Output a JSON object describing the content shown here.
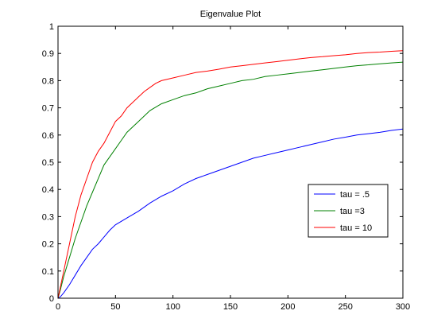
{
  "chart_data": {
    "type": "line",
    "title": "Eigenvalue Plot",
    "xlabel": "",
    "ylabel": "",
    "xlim": [
      0,
      300
    ],
    "ylim": [
      0,
      1
    ],
    "xticks": [
      "0",
      "50",
      "100",
      "150",
      "200",
      "250",
      "300"
    ],
    "yticks": [
      "0",
      "0.1",
      "0.2",
      "0.3",
      "0.4",
      "0.5",
      "0.6",
      "0.7",
      "0.8",
      "0.9",
      "1"
    ],
    "grid": false,
    "legend_position": "right",
    "series": [
      {
        "name": "tau = .5",
        "color": "#0000ff",
        "x": [
          0,
          2,
          5,
          10,
          15,
          20,
          25,
          30,
          35,
          40,
          45,
          50,
          60,
          70,
          80,
          90,
          100,
          110,
          120,
          130,
          140,
          150,
          160,
          170,
          180,
          190,
          200,
          210,
          220,
          230,
          240,
          250,
          260,
          270,
          280,
          290,
          300
        ],
        "y": [
          0,
          0.005,
          0.02,
          0.05,
          0.085,
          0.12,
          0.15,
          0.18,
          0.2,
          0.225,
          0.25,
          0.27,
          0.295,
          0.32,
          0.35,
          0.375,
          0.395,
          0.42,
          0.44,
          0.455,
          0.47,
          0.485,
          0.5,
          0.515,
          0.525,
          0.535,
          0.545,
          0.555,
          0.565,
          0.575,
          0.585,
          0.592,
          0.6,
          0.605,
          0.61,
          0.617,
          0.622
        ]
      },
      {
        "name": "tau =3",
        "color": "#008000",
        "x": [
          0,
          2,
          5,
          10,
          15,
          20,
          25,
          30,
          35,
          40,
          45,
          50,
          55,
          60,
          70,
          80,
          90,
          100,
          110,
          120,
          130,
          140,
          150,
          160,
          170,
          180,
          190,
          200,
          210,
          220,
          230,
          240,
          250,
          260,
          270,
          280,
          290,
          300
        ],
        "y": [
          0,
          0.03,
          0.08,
          0.15,
          0.22,
          0.28,
          0.34,
          0.39,
          0.44,
          0.49,
          0.52,
          0.55,
          0.58,
          0.61,
          0.65,
          0.69,
          0.715,
          0.73,
          0.745,
          0.755,
          0.77,
          0.78,
          0.79,
          0.8,
          0.805,
          0.815,
          0.82,
          0.825,
          0.83,
          0.835,
          0.84,
          0.845,
          0.85,
          0.855,
          0.858,
          0.862,
          0.865,
          0.868
        ]
      },
      {
        "name": "tau = 10",
        "color": "#ff0000",
        "x": [
          0,
          2,
          5,
          10,
          15,
          20,
          25,
          30,
          35,
          40,
          45,
          50,
          55,
          60,
          65,
          70,
          75,
          80,
          85,
          90,
          100,
          110,
          120,
          130,
          140,
          150,
          160,
          170,
          180,
          190,
          200,
          210,
          220,
          230,
          240,
          250,
          260,
          270,
          280,
          290,
          300
        ],
        "y": [
          0,
          0.04,
          0.1,
          0.2,
          0.3,
          0.38,
          0.44,
          0.5,
          0.54,
          0.57,
          0.61,
          0.65,
          0.67,
          0.7,
          0.72,
          0.74,
          0.76,
          0.775,
          0.79,
          0.8,
          0.81,
          0.82,
          0.83,
          0.835,
          0.842,
          0.85,
          0.855,
          0.86,
          0.865,
          0.87,
          0.875,
          0.88,
          0.885,
          0.888,
          0.892,
          0.895,
          0.9,
          0.903,
          0.905,
          0.908,
          0.91
        ]
      }
    ]
  }
}
